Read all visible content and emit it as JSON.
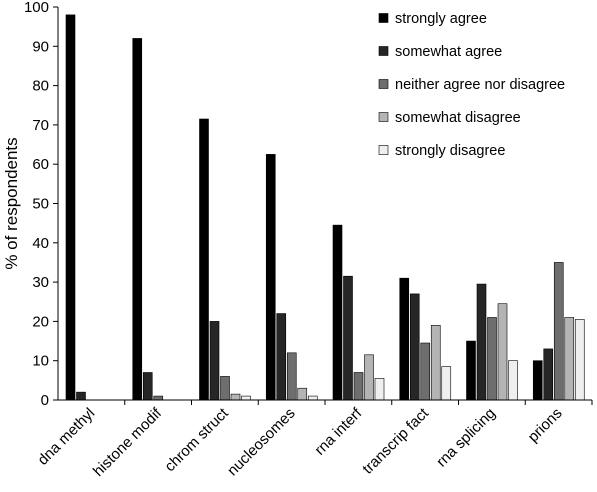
{
  "chart_data": {
    "type": "bar",
    "title": "",
    "xlabel": "",
    "ylabel": "% of respondents",
    "ylim": [
      0,
      100
    ],
    "yticks": [
      0,
      10,
      20,
      30,
      40,
      50,
      60,
      70,
      80,
      90,
      100
    ],
    "grid": false,
    "legend_position": "top-right",
    "categories": [
      "dna methyl",
      "histone modif",
      "chrom struct",
      "nucleosomes",
      "rna interf",
      "transcrip fact",
      "rna splicing",
      "prions"
    ],
    "series": [
      {
        "name": "strongly agree",
        "color": "#000000",
        "values": [
          98,
          92,
          71.5,
          62.5,
          44.5,
          31,
          15,
          10
        ]
      },
      {
        "name": "somewhat agree",
        "color": "#262626",
        "values": [
          2,
          7,
          20,
          22,
          31.5,
          27,
          29.5,
          13
        ]
      },
      {
        "name": "neither agree nor disagree",
        "color": "#6e6e6e",
        "values": [
          0,
          1,
          6,
          12,
          7,
          14.5,
          21,
          35
        ]
      },
      {
        "name": "somewhat disagree",
        "color": "#b4b4b4",
        "values": [
          0,
          0,
          1.5,
          3,
          11.5,
          19,
          24.5,
          21
        ]
      },
      {
        "name": "strongly disagree",
        "color": "#efefef",
        "values": [
          0,
          0,
          1,
          1,
          5.5,
          8.5,
          10,
          20.5
        ]
      }
    ]
  }
}
